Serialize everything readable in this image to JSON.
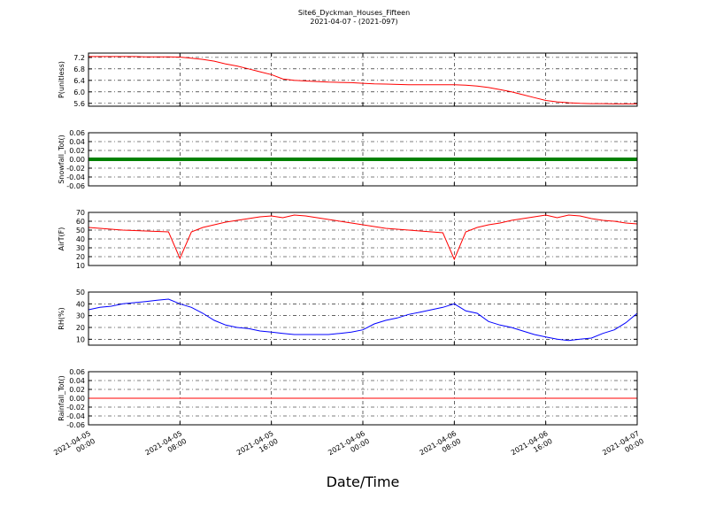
{
  "chart_data": [
    {
      "type": "line",
      "title": "Site6_Dyckman_Houses_Fifteen",
      "subtitle": "2021-04-07 - (2021-097)",
      "ylabel": "P(unitless)",
      "x": [
        "2021-04-05 00:00",
        "2021-04-05 01:00",
        "2021-04-05 02:00",
        "2021-04-05 03:00",
        "2021-04-05 04:00",
        "2021-04-05 05:00",
        "2021-04-05 06:00",
        "2021-04-05 07:00",
        "2021-04-05 08:00",
        "2021-04-05 09:00",
        "2021-04-05 10:00",
        "2021-04-05 11:00",
        "2021-04-05 12:00",
        "2021-04-05 13:00",
        "2021-04-05 14:00",
        "2021-04-05 15:00",
        "2021-04-05 16:00",
        "2021-04-05 17:00",
        "2021-04-05 18:00",
        "2021-04-05 19:00",
        "2021-04-05 20:00",
        "2021-04-05 21:00",
        "2021-04-05 22:00",
        "2021-04-05 23:00",
        "2021-04-06 00:00",
        "2021-04-06 01:00",
        "2021-04-06 02:00",
        "2021-04-06 03:00",
        "2021-04-06 04:00",
        "2021-04-06 05:00",
        "2021-04-06 06:00",
        "2021-04-06 07:00",
        "2021-04-06 08:00",
        "2021-04-06 09:00",
        "2021-04-06 10:00",
        "2021-04-06 11:00",
        "2021-04-06 12:00",
        "2021-04-06 13:00",
        "2021-04-06 14:00",
        "2021-04-06 15:00",
        "2021-04-06 16:00",
        "2021-04-06 17:00",
        "2021-04-06 18:00",
        "2021-04-06 19:00",
        "2021-04-06 20:00",
        "2021-04-06 21:00",
        "2021-04-06 22:00",
        "2021-04-06 23:00",
        "2021-04-07 00:00"
      ],
      "series": [
        {
          "color": "#ff0000",
          "values": [
            7.23,
            7.23,
            7.23,
            7.23,
            7.23,
            7.22,
            7.22,
            7.22,
            7.21,
            7.17,
            7.13,
            7.07,
            6.97,
            6.9,
            6.8,
            6.7,
            6.6,
            6.45,
            6.4,
            6.38,
            6.36,
            6.34,
            6.33,
            6.32,
            6.3,
            6.28,
            6.27,
            6.26,
            6.25,
            6.25,
            6.25,
            6.25,
            6.25,
            6.23,
            6.2,
            6.15,
            6.08,
            6.0,
            5.9,
            5.8,
            5.7,
            5.65,
            5.62,
            5.6,
            5.59,
            5.59,
            5.58,
            5.58,
            5.58
          ]
        }
      ],
      "ylim": [
        5.5,
        7.35
      ],
      "yticks": [
        5.6,
        {
          "value": 6.0,
          "label": "6.0"
        },
        6.4,
        6.8,
        7.2
      ],
      "grid": true
    },
    {
      "type": "line",
      "ylabel": "Snowfall_Tot()",
      "x": [
        "2021-04-05 00:00",
        "2021-04-05 01:00",
        "2021-04-05 02:00",
        "2021-04-05 03:00",
        "2021-04-05 04:00",
        "2021-04-05 05:00",
        "2021-04-05 06:00",
        "2021-04-05 07:00",
        "2021-04-05 08:00",
        "2021-04-05 09:00",
        "2021-04-05 10:00",
        "2021-04-05 11:00",
        "2021-04-05 12:00",
        "2021-04-05 13:00",
        "2021-04-05 14:00",
        "2021-04-05 15:00",
        "2021-04-05 16:00",
        "2021-04-05 17:00",
        "2021-04-05 18:00",
        "2021-04-05 19:00",
        "2021-04-05 20:00",
        "2021-04-05 21:00",
        "2021-04-05 22:00",
        "2021-04-05 23:00",
        "2021-04-06 00:00",
        "2021-04-06 01:00",
        "2021-04-06 02:00",
        "2021-04-06 03:00",
        "2021-04-06 04:00",
        "2021-04-06 05:00",
        "2021-04-06 06:00",
        "2021-04-06 07:00",
        "2021-04-06 08:00",
        "2021-04-06 09:00",
        "2021-04-06 10:00",
        "2021-04-06 11:00",
        "2021-04-06 12:00",
        "2021-04-06 13:00",
        "2021-04-06 14:00",
        "2021-04-06 15:00",
        "2021-04-06 16:00",
        "2021-04-06 17:00",
        "2021-04-06 18:00",
        "2021-04-06 19:00",
        "2021-04-06 20:00",
        "2021-04-06 21:00",
        "2021-04-06 22:00",
        "2021-04-06 23:00",
        "2021-04-07 00:00"
      ],
      "series": [
        {
          "color": "#008000",
          "values": [
            0,
            0,
            0,
            0,
            0,
            0,
            0,
            0,
            0,
            0,
            0,
            0,
            0,
            0,
            0,
            0,
            0,
            0,
            0,
            0,
            0,
            0,
            0,
            0,
            0,
            0,
            0,
            0,
            0,
            0,
            0,
            0,
            0,
            0,
            0,
            0,
            0,
            0,
            0,
            0,
            0,
            0,
            0,
            0,
            0,
            0,
            0,
            0,
            0
          ]
        }
      ],
      "ylim": [
        -0.06,
        0.06
      ],
      "yticks": [
        -0.06,
        -0.04,
        -0.02,
        {
          "value": 0,
          "label": "0.00"
        },
        0.02,
        0.04,
        0.06
      ],
      "grid": true
    },
    {
      "type": "line",
      "ylabel": "AirT(F)",
      "x": [
        "2021-04-05 00:00",
        "2021-04-05 01:00",
        "2021-04-05 02:00",
        "2021-04-05 03:00",
        "2021-04-05 04:00",
        "2021-04-05 05:00",
        "2021-04-05 06:00",
        "2021-04-05 07:00",
        "2021-04-05 08:00",
        "2021-04-05 09:00",
        "2021-04-05 10:00",
        "2021-04-05 11:00",
        "2021-04-05 12:00",
        "2021-04-05 13:00",
        "2021-04-05 14:00",
        "2021-04-05 15:00",
        "2021-04-05 16:00",
        "2021-04-05 17:00",
        "2021-04-05 18:00",
        "2021-04-05 19:00",
        "2021-04-05 20:00",
        "2021-04-05 21:00",
        "2021-04-05 22:00",
        "2021-04-05 23:00",
        "2021-04-06 00:00",
        "2021-04-06 01:00",
        "2021-04-06 02:00",
        "2021-04-06 03:00",
        "2021-04-06 04:00",
        "2021-04-06 05:00",
        "2021-04-06 06:00",
        "2021-04-06 07:00",
        "2021-04-06 08:00",
        "2021-04-06 09:00",
        "2021-04-06 10:00",
        "2021-04-06 11:00",
        "2021-04-06 12:00",
        "2021-04-06 13:00",
        "2021-04-06 14:00",
        "2021-04-06 15:00",
        "2021-04-06 16:00",
        "2021-04-06 17:00",
        "2021-04-06 18:00",
        "2021-04-06 19:00",
        "2021-04-06 20:00",
        "2021-04-06 21:00",
        "2021-04-06 22:00",
        "2021-04-06 23:00",
        "2021-04-07 00:00"
      ],
      "series": [
        {
          "color": "#ff0000",
          "values": [
            53,
            52,
            51,
            50,
            49.5,
            49,
            48.5,
            48,
            18,
            48,
            53,
            56,
            59,
            61,
            63,
            65,
            66,
            64,
            67,
            66,
            64,
            62,
            60,
            58,
            56,
            54,
            52,
            51,
            50,
            49,
            48,
            47,
            17,
            48,
            53,
            56,
            58,
            61,
            63,
            65,
            67,
            64,
            67,
            66,
            63,
            61,
            60,
            58,
            57
          ]
        }
      ],
      "ylim": [
        10,
        70
      ],
      "yticks": [
        10,
        20,
        30,
        40,
        50,
        60,
        70
      ],
      "grid": true
    },
    {
      "type": "line",
      "ylabel": "RH(%)",
      "x": [
        "2021-04-05 00:00",
        "2021-04-05 01:00",
        "2021-04-05 02:00",
        "2021-04-05 03:00",
        "2021-04-05 04:00",
        "2021-04-05 05:00",
        "2021-04-05 06:00",
        "2021-04-05 07:00",
        "2021-04-05 08:00",
        "2021-04-05 09:00",
        "2021-04-05 10:00",
        "2021-04-05 11:00",
        "2021-04-05 12:00",
        "2021-04-05 13:00",
        "2021-04-05 14:00",
        "2021-04-05 15:00",
        "2021-04-05 16:00",
        "2021-04-05 17:00",
        "2021-04-05 18:00",
        "2021-04-05 19:00",
        "2021-04-05 20:00",
        "2021-04-05 21:00",
        "2021-04-05 22:00",
        "2021-04-05 23:00",
        "2021-04-06 00:00",
        "2021-04-06 01:00",
        "2021-04-06 02:00",
        "2021-04-06 03:00",
        "2021-04-06 04:00",
        "2021-04-06 05:00",
        "2021-04-06 06:00",
        "2021-04-06 07:00",
        "2021-04-06 08:00",
        "2021-04-06 09:00",
        "2021-04-06 10:00",
        "2021-04-06 11:00",
        "2021-04-06 12:00",
        "2021-04-06 13:00",
        "2021-04-06 14:00",
        "2021-04-06 15:00",
        "2021-04-06 16:00",
        "2021-04-06 17:00",
        "2021-04-06 18:00",
        "2021-04-06 19:00",
        "2021-04-06 20:00",
        "2021-04-06 21:00",
        "2021-04-06 22:00",
        "2021-04-06 23:00",
        "2021-04-07 00:00"
      ],
      "series": [
        {
          "color": "#0000ff",
          "values": [
            35,
            37,
            38,
            40,
            41,
            42,
            43,
            44,
            40,
            37,
            32,
            26,
            22,
            20,
            19,
            17,
            16,
            15,
            14,
            14,
            14,
            14,
            15,
            16,
            18,
            23,
            26,
            28,
            31,
            33,
            35,
            37,
            40,
            34,
            32,
            25,
            22,
            20,
            17,
            14,
            12,
            10,
            9,
            10,
            11,
            15,
            18,
            24,
            32
          ]
        }
      ],
      "ylim": [
        5,
        50
      ],
      "yticks": [
        10,
        20,
        30,
        40,
        50
      ],
      "grid": true
    },
    {
      "type": "line",
      "ylabel": "Rainfall_Tot()",
      "xlabel": "Date/Time",
      "x": [
        "2021-04-05 00:00",
        "2021-04-05 01:00",
        "2021-04-05 02:00",
        "2021-04-05 03:00",
        "2021-04-05 04:00",
        "2021-04-05 05:00",
        "2021-04-05 06:00",
        "2021-04-05 07:00",
        "2021-04-05 08:00",
        "2021-04-05 09:00",
        "2021-04-05 10:00",
        "2021-04-05 11:00",
        "2021-04-05 12:00",
        "2021-04-05 13:00",
        "2021-04-05 14:00",
        "2021-04-05 15:00",
        "2021-04-05 16:00",
        "2021-04-05 17:00",
        "2021-04-05 18:00",
        "2021-04-05 19:00",
        "2021-04-05 20:00",
        "2021-04-05 21:00",
        "2021-04-05 22:00",
        "2021-04-05 23:00",
        "2021-04-06 00:00",
        "2021-04-06 01:00",
        "2021-04-06 02:00",
        "2021-04-06 03:00",
        "2021-04-06 04:00",
        "2021-04-06 05:00",
        "2021-04-06 06:00",
        "2021-04-06 07:00",
        "2021-04-06 08:00",
        "2021-04-06 09:00",
        "2021-04-06 10:00",
        "2021-04-06 11:00",
        "2021-04-06 12:00",
        "2021-04-06 13:00",
        "2021-04-06 14:00",
        "2021-04-06 15:00",
        "2021-04-06 16:00",
        "2021-04-06 17:00",
        "2021-04-06 18:00",
        "2021-04-06 19:00",
        "2021-04-06 20:00",
        "2021-04-06 21:00",
        "2021-04-06 22:00",
        "2021-04-06 23:00",
        "2021-04-07 00:00"
      ],
      "series": [
        {
          "color": "#ff0000",
          "values": [
            0,
            0,
            0,
            0,
            0,
            0,
            0,
            0,
            0,
            0,
            0,
            0,
            0,
            0,
            0,
            0,
            0,
            0,
            0,
            0,
            0,
            0,
            0,
            0,
            0,
            0,
            0,
            0,
            0,
            0,
            0,
            0,
            0,
            0,
            0,
            0,
            0,
            0,
            0,
            0,
            0,
            0,
            0,
            0,
            0,
            0,
            0,
            0,
            0
          ]
        }
      ],
      "ylim": [
        -0.06,
        0.06
      ],
      "yticks": [
        -0.06,
        -0.04,
        -0.02,
        {
          "value": 0,
          "label": "0.00"
        },
        0.02,
        0.04,
        0.06
      ],
      "grid": true,
      "xticks": [
        {
          "value": "2021-04-05 00:00",
          "label": "2021-04-05\n00:00"
        },
        {
          "value": "2021-04-05 08:00",
          "label": "2021-04-05\n08:00"
        },
        {
          "value": "2021-04-05 16:00",
          "label": "2021-04-05\n16:00"
        },
        {
          "value": "2021-04-06 00:00",
          "label": "2021-04-06\n00:00"
        },
        {
          "value": "2021-04-06 08:00",
          "label": "2021-04-06\n08:00"
        },
        {
          "value": "2021-04-06 16:00",
          "label": "2021-04-06\n16:00"
        },
        {
          "value": "2021-04-07 00:00",
          "label": "2021-04-07\n00:00"
        }
      ]
    }
  ]
}
